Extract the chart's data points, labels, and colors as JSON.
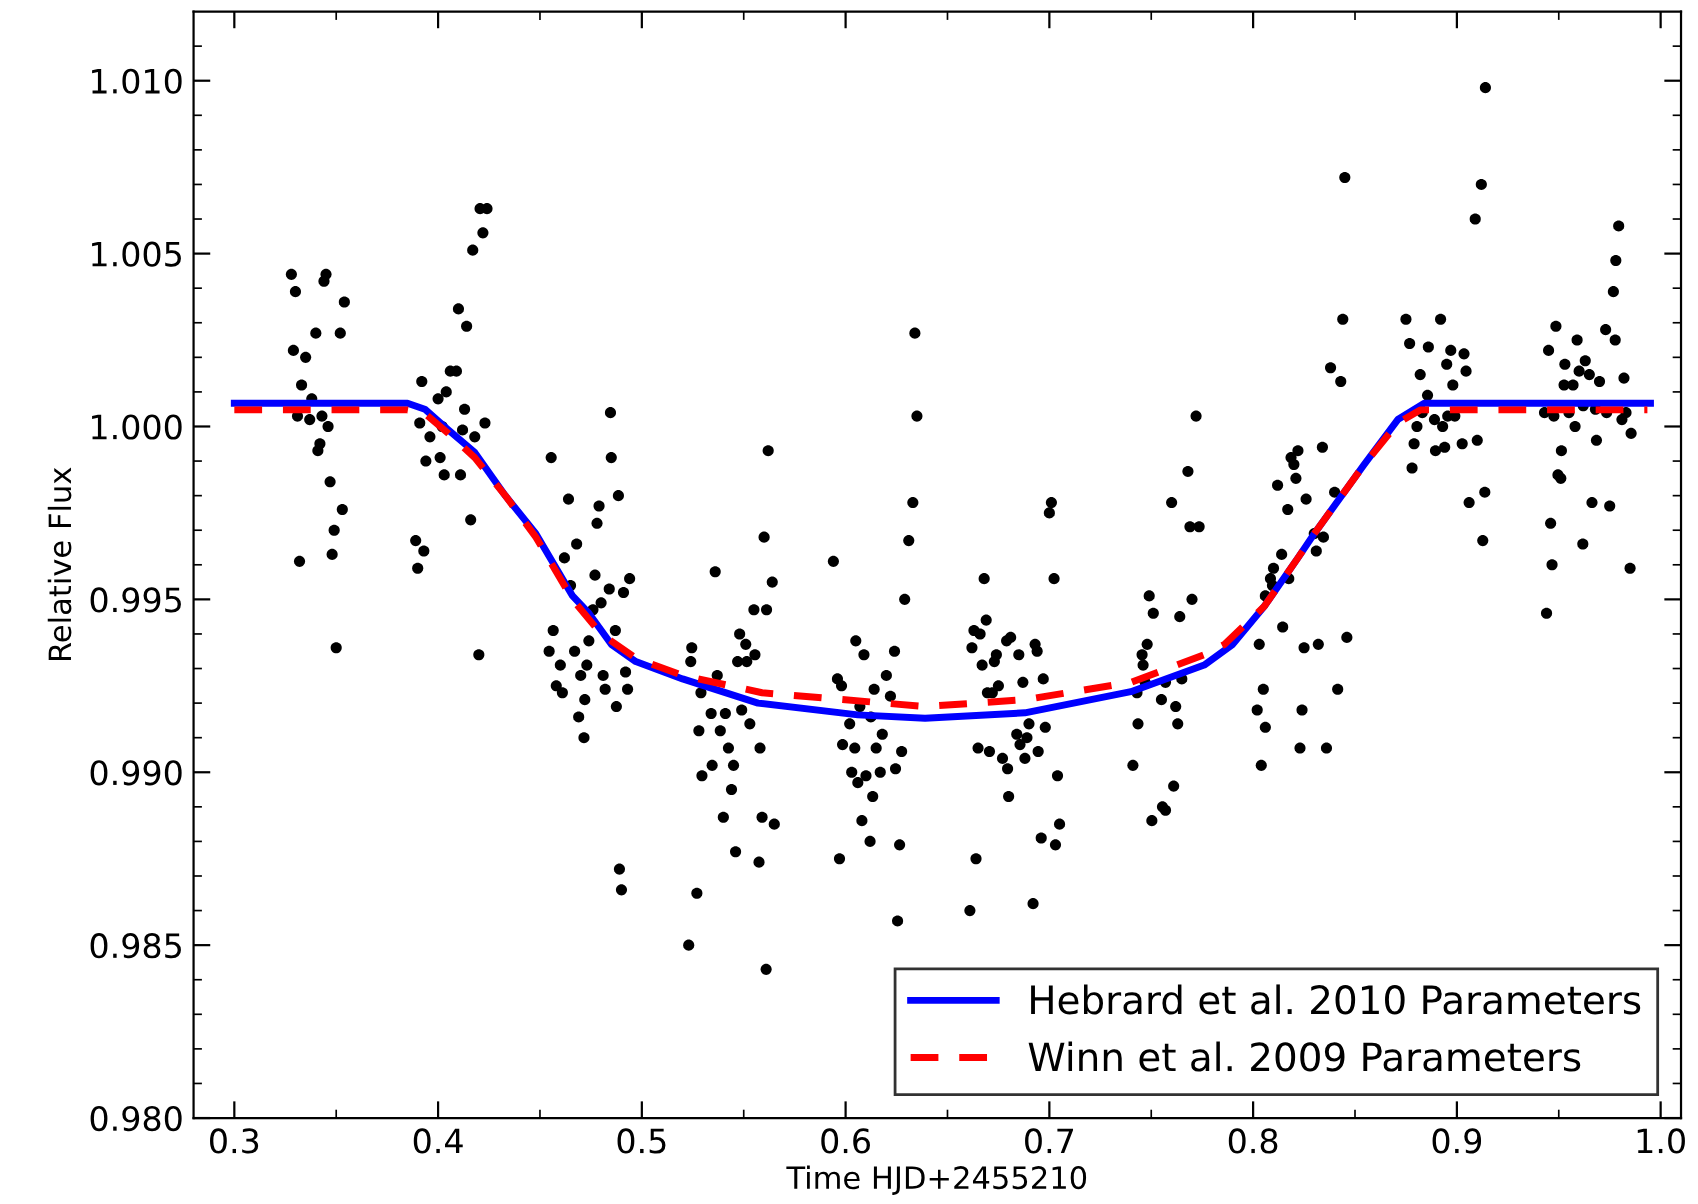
{
  "chart_data": {
    "type": "scatter",
    "xlabel": "Time HJD+2455210",
    "ylabel": "Relative Flux",
    "xlim": [
      0.28,
      1.01
    ],
    "ylim": [
      0.98,
      1.012
    ],
    "xticks": [
      {
        "value": 0.3,
        "label": "0.3"
      },
      {
        "value": 0.35,
        "label": null
      },
      {
        "value": 0.4,
        "label": "0.4"
      },
      {
        "value": 0.45,
        "label": null
      },
      {
        "value": 0.5,
        "label": "0.5"
      },
      {
        "value": 0.55,
        "label": null
      },
      {
        "value": 0.6,
        "label": "0.6"
      },
      {
        "value": 0.65,
        "label": null
      },
      {
        "value": 0.7,
        "label": "0.7"
      },
      {
        "value": 0.75,
        "label": null
      },
      {
        "value": 0.8,
        "label": "0.8"
      },
      {
        "value": 0.85,
        "label": null
      },
      {
        "value": 0.9,
        "label": "0.9"
      },
      {
        "value": 0.95,
        "label": null
      },
      {
        "value": 1.0,
        "label": "1.0"
      }
    ],
    "yticks": [
      {
        "value": 0.98,
        "label": "0.980"
      },
      {
        "value": 0.981,
        "label": null
      },
      {
        "value": 0.982,
        "label": null
      },
      {
        "value": 0.983,
        "label": null
      },
      {
        "value": 0.984,
        "label": null
      },
      {
        "value": 0.985,
        "label": "0.985"
      },
      {
        "value": 0.986,
        "label": null
      },
      {
        "value": 0.987,
        "label": null
      },
      {
        "value": 0.988,
        "label": null
      },
      {
        "value": 0.989,
        "label": null
      },
      {
        "value": 0.99,
        "label": "0.990"
      },
      {
        "value": 0.991,
        "label": null
      },
      {
        "value": 0.992,
        "label": null
      },
      {
        "value": 0.993,
        "label": null
      },
      {
        "value": 0.994,
        "label": null
      },
      {
        "value": 0.995,
        "label": "0.995"
      },
      {
        "value": 0.996,
        "label": null
      },
      {
        "value": 0.997,
        "label": null
      },
      {
        "value": 0.998,
        "label": null
      },
      {
        "value": 0.999,
        "label": null
      },
      {
        "value": 1.0,
        "label": "1.000"
      },
      {
        "value": 1.001,
        "label": null
      },
      {
        "value": 1.002,
        "label": null
      },
      {
        "value": 1.003,
        "label": null
      },
      {
        "value": 1.004,
        "label": null
      },
      {
        "value": 1.005,
        "label": "1.005"
      },
      {
        "value": 1.006,
        "label": null
      },
      {
        "value": 1.007,
        "label": null
      },
      {
        "value": 1.008,
        "label": null
      },
      {
        "value": 1.009,
        "label": null
      },
      {
        "value": 1.01,
        "label": "1.010"
      },
      {
        "value": 1.011,
        "label": null
      }
    ],
    "legend": "bottom right",
    "series": [
      {
        "color": "#000000",
        "marker": "circle",
        "x": [
          0.328,
          0.33,
          0.345,
          0.344,
          0.354,
          0.34,
          0.352,
          0.329,
          0.335,
          0.333,
          0.338,
          0.331,
          0.337,
          0.343,
          0.346,
          0.342,
          0.341,
          0.347,
          0.353,
          0.349,
          0.348,
          0.332,
          0.35,
          0.4206,
          0.424,
          0.422,
          0.417,
          0.41,
          0.414,
          0.406,
          0.409,
          0.404,
          0.392,
          0.4,
          0.413,
          0.423,
          0.391,
          0.402,
          0.412,
          0.418,
          0.396,
          0.394,
          0.401,
          0.403,
          0.411,
          0.416,
          0.389,
          0.393,
          0.39,
          0.42,
          0.4555,
          0.464,
          0.4846,
          0.485,
          0.4885,
          0.479,
          0.478,
          0.468,
          0.462,
          0.477,
          0.484,
          0.494,
          0.491,
          0.465,
          0.476,
          0.48,
          0.4565,
          0.4545,
          0.46,
          0.467,
          0.474,
          0.487,
          0.473,
          0.47,
          0.458,
          0.461,
          0.481,
          0.482,
          0.492,
          0.493,
          0.472,
          0.4875,
          0.469,
          0.4716,
          0.489,
          0.49,
          0.536,
          0.5245,
          0.524,
          0.537,
          0.529,
          0.534,
          0.528,
          0.5385,
          0.5425,
          0.5295,
          0.5345,
          0.545,
          0.544,
          0.54,
          0.546,
          0.527,
          0.523,
          0.5575,
          0.559,
          0.558,
          0.561,
          0.555,
          0.548,
          0.551,
          0.5555,
          0.547,
          0.5515,
          0.549,
          0.553,
          0.541,
          0.5612,
          0.564,
          0.565,
          0.594,
          0.562,
          0.56,
          0.629,
          0.605,
          0.609,
          0.624,
          0.596,
          0.598,
          0.614,
          0.62,
          0.622,
          0.607,
          0.6124,
          0.602,
          0.618,
          0.5985,
          0.6045,
          0.615,
          0.6275,
          0.603,
          0.61,
          0.617,
          0.6245,
          0.606,
          0.6133,
          0.608,
          0.612,
          0.6265,
          0.597,
          0.6255,
          0.634,
          0.635,
          0.633,
          0.631,
          0.668,
          0.701,
          0.7,
          0.7023,
          0.772,
          0.768,
          0.76,
          0.769,
          0.7735,
          0.749,
          0.669,
          0.663,
          0.666,
          0.662,
          0.679,
          0.681,
          0.674,
          0.673,
          0.667,
          0.685,
          0.693,
          0.694,
          0.675,
          0.6696,
          0.672,
          0.687,
          0.697,
          0.69,
          0.684,
          0.689,
          0.698,
          0.6856,
          0.665,
          0.6706,
          0.6945,
          0.688,
          0.677,
          0.6795,
          0.704,
          0.68,
          0.705,
          0.696,
          0.703,
          0.664,
          0.692,
          0.661,
          0.751,
          0.77,
          0.764,
          0.748,
          0.7455,
          0.746,
          0.747,
          0.743,
          0.757,
          0.765,
          0.755,
          0.762,
          0.763,
          0.7435,
          0.741,
          0.761,
          0.7555,
          0.757,
          0.7503,
          0.845,
          0.844,
          0.838,
          0.843,
          0.822,
          0.8186,
          0.82,
          0.834,
          0.812,
          0.821,
          0.826,
          0.817,
          0.84,
          0.83,
          0.8345,
          0.831,
          0.814,
          0.81,
          0.8095,
          0.8085,
          0.806,
          0.8175,
          0.8145,
          0.803,
          0.825,
          0.832,
          0.846,
          0.805,
          0.8415,
          0.802,
          0.824,
          0.806,
          0.823,
          0.836,
          0.804,
          0.914,
          0.912,
          0.909,
          0.875,
          0.892,
          0.8768,
          0.886,
          0.897,
          0.9035,
          0.895,
          0.882,
          0.9045,
          0.898,
          0.8856,
          0.883,
          0.889,
          0.8955,
          0.899,
          0.8804,
          0.893,
          0.879,
          0.8895,
          0.894,
          0.9026,
          0.91,
          0.878,
          0.9137,
          0.906,
          0.9127,
          0.9794,
          0.978,
          0.9768,
          0.9486,
          0.973,
          0.9777,
          0.959,
          0.945,
          0.953,
          0.963,
          0.96,
          0.965,
          0.97,
          0.982,
          0.9526,
          0.957,
          0.943,
          0.9476,
          0.955,
          0.962,
          0.968,
          0.9735,
          0.983,
          0.981,
          0.958,
          0.9855,
          0.9685,
          0.9513,
          0.9496,
          0.951,
          0.9663,
          0.975,
          0.946,
          0.9618,
          0.9467,
          0.985,
          0.944
        ],
        "values": [
          1.0044,
          1.0039,
          1.0044,
          1.0042,
          1.0036,
          1.0027,
          1.0027,
          1.0022,
          1.002,
          1.0012,
          1.0008,
          1.0003,
          1.0002,
          1.0003,
          1.0,
          0.9995,
          0.9993,
          0.9984,
          0.9976,
          0.997,
          0.9963,
          0.9961,
          0.9936,
          1.0063,
          1.0063,
          1.0056,
          1.0051,
          1.0034,
          1.0029,
          1.0016,
          1.0016,
          1.001,
          1.0013,
          1.0008,
          1.0005,
          1.0001,
          1.0001,
          1.0,
          0.9999,
          0.9997,
          0.9997,
          0.999,
          0.9991,
          0.9986,
          0.9986,
          0.9973,
          0.9967,
          0.9964,
          0.9959,
          0.9934,
          0.9991,
          0.9979,
          1.0004,
          0.9991,
          0.998,
          0.9977,
          0.9972,
          0.9966,
          0.9962,
          0.9957,
          0.9953,
          0.9956,
          0.9952,
          0.9954,
          0.9947,
          0.9949,
          0.9941,
          0.9935,
          0.9931,
          0.9935,
          0.9938,
          0.9941,
          0.9931,
          0.9928,
          0.9925,
          0.9923,
          0.9928,
          0.9924,
          0.9929,
          0.9924,
          0.9921,
          0.9919,
          0.9916,
          0.991,
          0.9872,
          0.9866,
          0.9958,
          0.9936,
          0.9932,
          0.9928,
          0.9923,
          0.9917,
          0.9912,
          0.9912,
          0.9907,
          0.9899,
          0.9902,
          0.9902,
          0.9895,
          0.9887,
          0.9877,
          0.9865,
          0.985,
          0.9874,
          0.9887,
          0.9907,
          0.9843,
          0.9947,
          0.994,
          0.9937,
          0.9934,
          0.9932,
          0.9932,
          0.9918,
          0.9914,
          0.9917,
          0.9947,
          0.9955,
          0.9885,
          0.9961,
          0.9993,
          0.9968,
          0.995,
          0.9938,
          0.9934,
          0.9935,
          0.9927,
          0.9925,
          0.9924,
          0.9928,
          0.9922,
          0.9919,
          0.9916,
          0.9914,
          0.9911,
          0.9908,
          0.9907,
          0.9907,
          0.9906,
          0.99,
          0.9899,
          0.99,
          0.9901,
          0.9897,
          0.9893,
          0.9886,
          0.988,
          0.9879,
          0.9875,
          0.9857,
          1.0027,
          1.0003,
          0.9978,
          0.9967,
          0.9956,
          0.9978,
          0.9975,
          0.9956,
          1.0003,
          0.9987,
          0.9978,
          0.9971,
          0.9971,
          0.9951,
          0.9944,
          0.9941,
          0.994,
          0.9936,
          0.9938,
          0.9939,
          0.9934,
          0.9932,
          0.9931,
          0.9934,
          0.9937,
          0.9935,
          0.9925,
          0.9923,
          0.9923,
          0.9926,
          0.9927,
          0.9914,
          0.9911,
          0.991,
          0.9913,
          0.9908,
          0.9907,
          0.9906,
          0.9906,
          0.9904,
          0.9904,
          0.9901,
          0.9899,
          0.9893,
          0.9885,
          0.9881,
          0.9879,
          0.9875,
          0.9862,
          0.986,
          0.9946,
          0.995,
          0.9945,
          0.9937,
          0.9934,
          0.9931,
          0.9926,
          0.9923,
          0.9926,
          0.9927,
          0.9921,
          0.9919,
          0.9914,
          0.9914,
          0.9902,
          0.9896,
          0.989,
          0.9889,
          0.9886,
          1.0072,
          1.0031,
          1.0017,
          1.0013,
          0.9993,
          0.9991,
          0.9989,
          0.9994,
          0.9983,
          0.9985,
          0.9979,
          0.9976,
          0.9981,
          0.9969,
          0.9968,
          0.9964,
          0.9963,
          0.9959,
          0.9954,
          0.9956,
          0.9951,
          0.9956,
          0.9942,
          0.9937,
          0.9936,
          0.9937,
          0.9939,
          0.9924,
          0.9924,
          0.9918,
          0.9918,
          0.9913,
          0.9907,
          0.9907,
          0.9902,
          1.0098,
          1.007,
          1.006,
          1.0031,
          1.0031,
          1.0024,
          1.0023,
          1.0022,
          1.0021,
          1.0018,
          1.0015,
          1.0016,
          1.0012,
          1.0009,
          1.0004,
          1.0002,
          1.0003,
          1.0003,
          1.0,
          1.0,
          0.9995,
          0.9993,
          0.9994,
          0.9995,
          0.9996,
          0.9988,
          0.9981,
          0.9978,
          0.9967,
          1.0058,
          1.0048,
          1.0039,
          1.0029,
          1.0028,
          1.0025,
          1.0025,
          1.0022,
          1.0018,
          1.0019,
          1.0016,
          1.0015,
          1.0013,
          1.0014,
          1.0012,
          1.0012,
          1.0004,
          1.0003,
          1.0004,
          1.0006,
          1.0005,
          1.0004,
          1.0004,
          1.0002,
          1.0,
          0.9998,
          0.9996,
          0.9993,
          0.9986,
          0.9985,
          0.9978,
          0.9977,
          0.9972,
          0.9966,
          0.996,
          0.9959,
          0.9946
        ]
      },
      {
        "type": "line",
        "name": "Hebrard et al. 2010 Parameters",
        "color": "#0000ff",
        "line_style": "solid",
        "x": [
          0.3,
          0.385,
          0.3935,
          0.405,
          0.418,
          0.433,
          0.448,
          0.466,
          0.474,
          0.485,
          0.497,
          0.52,
          0.557,
          0.606,
          0.639,
          0.688,
          0.74,
          0.776,
          0.79,
          0.8055,
          0.822,
          0.83,
          0.8545,
          0.871,
          0.884,
          0.995
        ],
        "values": [
          1.00067,
          1.00067,
          1.0005,
          0.9999,
          0.99925,
          0.998,
          0.9969,
          0.9951,
          0.9946,
          0.9937,
          0.9932,
          0.9927,
          0.992,
          0.99166,
          0.99156,
          0.99172,
          0.99233,
          0.9931,
          0.9937,
          0.9948,
          0.9962,
          0.9969,
          0.9989,
          1.0002,
          1.00067,
          1.00067
        ]
      },
      {
        "type": "line",
        "name": "Winn et al. 2009 Parameters",
        "color": "#ff0000",
        "line_style": "dashed",
        "x": [
          0.3,
          0.385,
          0.393,
          0.405,
          0.418,
          0.433,
          0.448,
          0.466,
          0.48,
          0.497,
          0.52,
          0.559,
          0.639,
          0.688,
          0.74,
          0.776,
          0.786,
          0.8055,
          0.822,
          0.83,
          0.8545,
          0.871,
          0.882,
          0.9935
        ],
        "values": [
          1.00048,
          1.00048,
          1.0004,
          0.9998,
          0.9991,
          0.998,
          0.9968,
          0.995,
          0.994,
          0.9933,
          0.9928,
          0.9923,
          0.9919,
          0.9921,
          0.9926,
          0.9934,
          0.9937,
          0.9948,
          0.9962,
          0.9969,
          0.9989,
          1.0001,
          1.00048,
          1.00048
        ]
      }
    ]
  }
}
